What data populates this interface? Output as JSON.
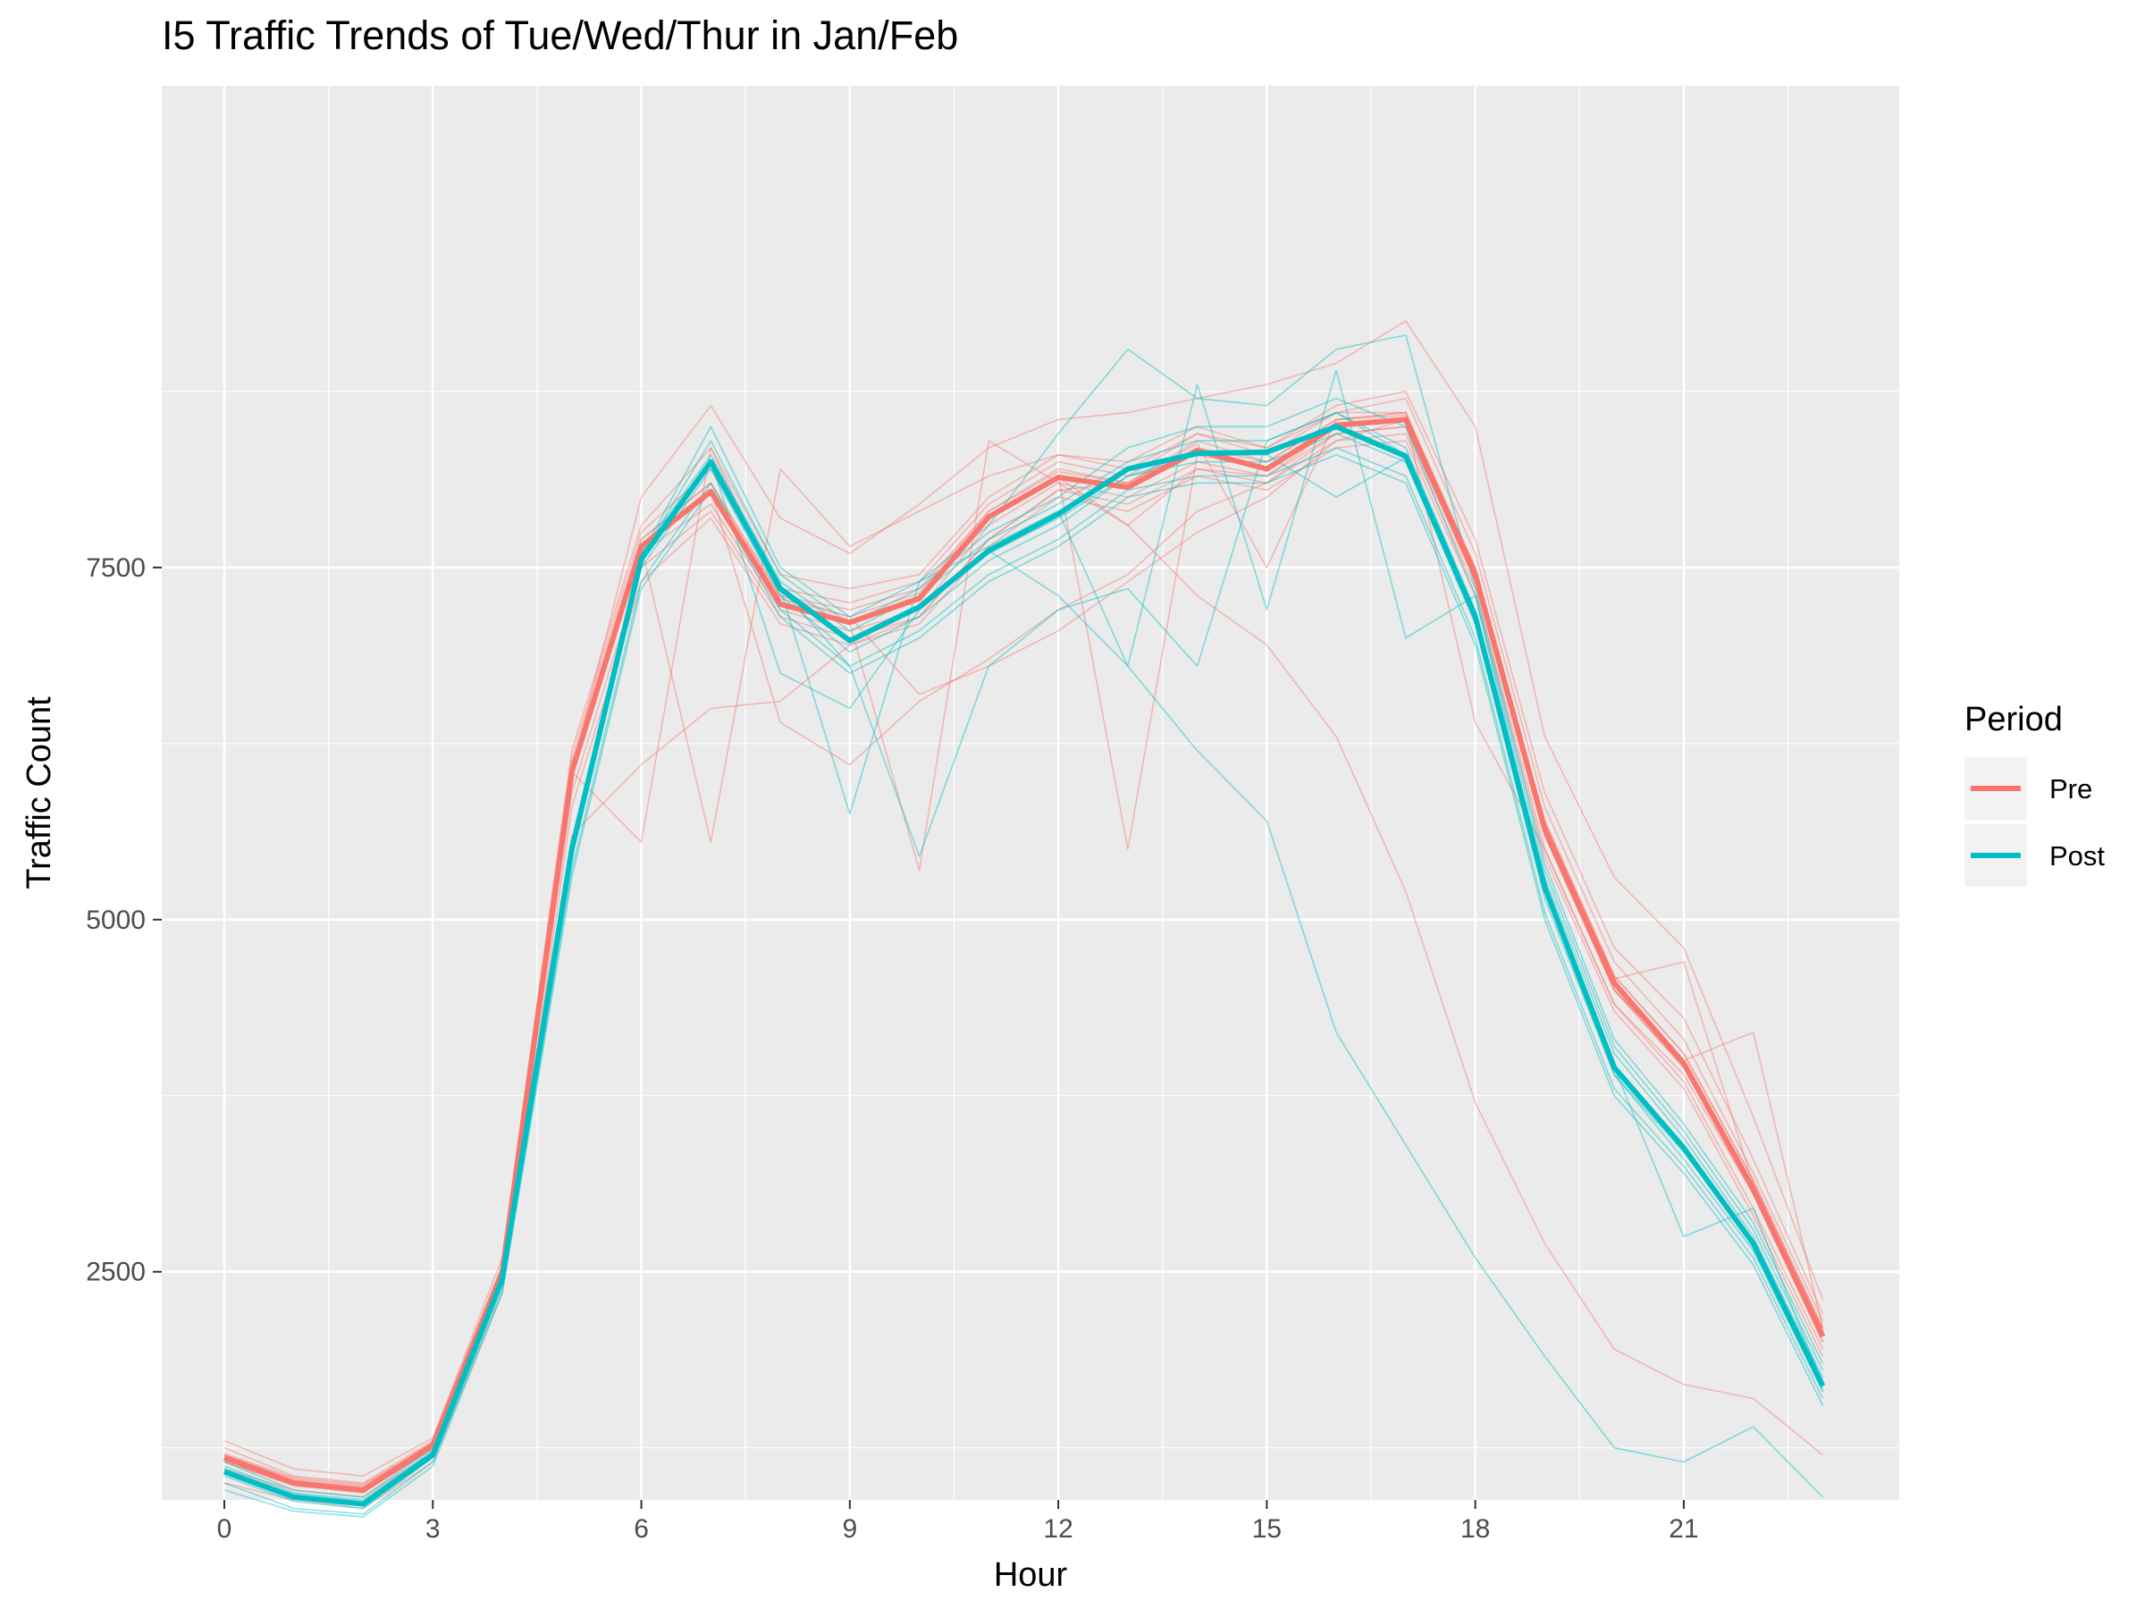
{
  "chart_data": {
    "type": "line",
    "title": "I5 Traffic Trends of Tue/Wed/Thur in Jan/Feb",
    "xlabel": "Hour",
    "ylabel": "Traffic Count",
    "xlim": [
      -0.9,
      24.1
    ],
    "ylim": [
      880,
      10920
    ],
    "x_ticks": [
      0,
      3,
      6,
      9,
      12,
      15,
      18,
      21
    ],
    "y_ticks": [
      2500,
      5000,
      7500
    ],
    "grid": true,
    "legend": {
      "title": "Period",
      "position": "right"
    },
    "colors": {
      "Pre": "#F8766D",
      "Post": "#00BFC4",
      "panel": "#EBEBEB",
      "grid": "#FFFFFF"
    },
    "x": [
      0,
      1,
      2,
      3,
      4,
      5,
      6,
      7,
      8,
      9,
      10,
      11,
      12,
      13,
      14,
      15,
      16,
      17,
      18,
      19,
      20,
      21,
      22,
      23
    ],
    "series": [
      {
        "name": "Pre",
        "values": [
          1180,
          1000,
          950,
          1270,
          2500,
          6050,
          7650,
          8040,
          7240,
          7110,
          7280,
          7860,
          8140,
          8070,
          8330,
          8200,
          8510,
          8550,
          7450,
          5640,
          4550,
          3980,
          3090,
          2040
        ]
      },
      {
        "name": "Post",
        "values": [
          1080,
          900,
          850,
          1200,
          2450,
          5500,
          7560,
          8250,
          7350,
          6980,
          7220,
          7620,
          7880,
          8200,
          8310,
          8320,
          8500,
          8290,
          7150,
          5230,
          3950,
          3380,
          2700,
          1690
        ]
      }
    ],
    "individual_days": [
      {
        "period": "Pre",
        "values": [
          1250,
          1050,
          1000,
          1300,
          2550,
          6100,
          7700,
          8100,
          7300,
          7200,
          7350,
          7900,
          8200,
          8100,
          8400,
          8250,
          8550,
          8600,
          7500,
          5700,
          4600,
          4050,
          3150,
          2100
        ]
      },
      {
        "period": "Pre",
        "values": [
          1300,
          1100,
          1050,
          1320,
          2600,
          6200,
          7800,
          8350,
          7450,
          7350,
          7450,
          8000,
          8300,
          8250,
          8500,
          8350,
          8650,
          8750,
          7700,
          5900,
          4800,
          4300,
          3300,
          2200
        ]
      },
      {
        "period": "Pre",
        "values": [
          1150,
          980,
          930,
          1250,
          2480,
          6000,
          7600,
          7950,
          7200,
          7050,
          7200,
          7800,
          8100,
          8000,
          8250,
          8150,
          8450,
          8500,
          7400,
          5600,
          4500,
          3950,
          3050,
          2000
        ]
      },
      {
        "period": "Pre",
        "values": [
          1100,
          950,
          900,
          1220,
          2450,
          5900,
          7500,
          7900,
          7150,
          7000,
          7150,
          7700,
          8050,
          7950,
          8200,
          8100,
          8400,
          8450,
          7350,
          5500,
          4400,
          3850,
          2950,
          1950
        ]
      },
      {
        "period": "Pre",
        "values": [
          1200,
          1020,
          970,
          1280,
          2520,
          6150,
          7750,
          8200,
          7350,
          7250,
          7400,
          7950,
          8250,
          8150,
          8450,
          8300,
          8600,
          8700,
          7600,
          5800,
          4700,
          4150,
          3200,
          2150
        ]
      },
      {
        "period": "Pre",
        "values": [
          1000,
          880,
          820,
          1150,
          2350,
          5800,
          7400,
          7850,
          7100,
          6950,
          7100,
          7650,
          8000,
          7900,
          8150,
          8050,
          8350,
          8400,
          7300,
          5450,
          4350,
          3800,
          2900,
          1900
        ]
      },
      {
        "period": "Pre",
        "values": [
          1180,
          1000,
          960,
          1260,
          2500,
          6050,
          8000,
          8650,
          7850,
          7600,
          7950,
          8350,
          8550,
          8600,
          8700,
          8800,
          8950,
          9250,
          8500,
          6300,
          5300,
          4800,
          3600,
          2300
        ]
      },
      {
        "period": "Pre",
        "values": [
          1150,
          990,
          940,
          1240,
          2480,
          5600,
          6100,
          6500,
          6550,
          6950,
          7150,
          7700,
          8050,
          8100,
          8350,
          8250,
          8550,
          8600,
          7450,
          5650,
          4500,
          4000,
          3100,
          2050
        ]
      },
      {
        "period": "Pre",
        "values": [
          1200,
          1030,
          980,
          1290,
          2520,
          6050,
          5550,
          8350,
          7300,
          7150,
          6600,
          6800,
          7050,
          7400,
          7750,
          8000,
          8400,
          8550,
          7500,
          5700,
          4600,
          4050,
          3150,
          2100
        ]
      },
      {
        "period": "Pre",
        "values": [
          1160,
          1000,
          950,
          1260,
          2500,
          6000,
          7650,
          5550,
          8200,
          7650,
          7900,
          8150,
          8300,
          8200,
          8450,
          8350,
          8600,
          8600,
          7400,
          5600,
          4500,
          4000,
          3100,
          2050
        ]
      },
      {
        "period": "Pre",
        "values": [
          1180,
          1010,
          960,
          1270,
          2500,
          6050,
          7650,
          8050,
          6400,
          6100,
          6550,
          6850,
          7200,
          7450,
          7900,
          8100,
          8450,
          8500,
          7400,
          5600,
          4500,
          3950,
          3100,
          2050
        ]
      },
      {
        "period": "Pre",
        "values": [
          1170,
          1000,
          950,
          1260,
          2490,
          6030,
          7640,
          8020,
          7250,
          7100,
          5350,
          8400,
          8100,
          7800,
          8200,
          8150,
          8500,
          8550,
          6400,
          5500,
          4400,
          3900,
          3050,
          2000
        ]
      },
      {
        "period": "Pre",
        "values": [
          1190,
          1010,
          960,
          1270,
          2510,
          6060,
          7660,
          8040,
          7240,
          7120,
          7300,
          7850,
          8150,
          5500,
          8300,
          8200,
          8500,
          8550,
          7450,
          5650,
          4550,
          4000,
          4200,
          2100
        ]
      },
      {
        "period": "Pre",
        "values": [
          1180,
          1000,
          950,
          1270,
          2500,
          6050,
          7650,
          8040,
          7240,
          7110,
          7280,
          7860,
          8140,
          7800,
          7300,
          6950,
          6300,
          5200,
          3700,
          2700,
          1950,
          1700,
          1600,
          1200
        ]
      },
      {
        "period": "Pre",
        "values": [
          1210,
          1040,
          990,
          1280,
          2530,
          6100,
          7700,
          8100,
          7280,
          7150,
          7320,
          7900,
          8180,
          8100,
          8380,
          7500,
          8550,
          8580,
          7480,
          5680,
          4580,
          4700,
          3120,
          2080
        ]
      },
      {
        "period": "Post",
        "values": [
          1150,
          950,
          900,
          1250,
          2500,
          5550,
          7600,
          8300,
          7400,
          7050,
          7300,
          7700,
          7950,
          8250,
          8400,
          8400,
          8600,
          8350,
          7200,
          5300,
          4050,
          3450,
          2750,
          1750
        ]
      },
      {
        "period": "Post",
        "values": [
          1050,
          870,
          820,
          1180,
          2420,
          5450,
          7500,
          8200,
          7300,
          6900,
          7150,
          7550,
          7800,
          8150,
          8250,
          8250,
          8450,
          8250,
          7100,
          5150,
          3900,
          3300,
          2650,
          1650
        ]
      },
      {
        "period": "Post",
        "values": [
          1100,
          920,
          870,
          1220,
          2470,
          5500,
          7580,
          8400,
          7450,
          7100,
          7350,
          7750,
          8000,
          8350,
          8500,
          8500,
          8700,
          8500,
          7300,
          5350,
          4100,
          3500,
          2800,
          1800
        ]
      },
      {
        "period": "Post",
        "values": [
          1000,
          820,
          780,
          1150,
          2380,
          5350,
          7400,
          8100,
          7200,
          6800,
          7050,
          7450,
          7700,
          8050,
          8150,
          8150,
          8350,
          8150,
          7000,
          5050,
          3800,
          3250,
          2600,
          1600
        ]
      },
      {
        "period": "Post",
        "values": [
          950,
          800,
          760,
          1120,
          2350,
          5300,
          7350,
          8050,
          7150,
          6750,
          7000,
          7400,
          7650,
          8000,
          8100,
          8100,
          8300,
          8100,
          6950,
          5000,
          3750,
          3200,
          2550,
          1550
        ]
      },
      {
        "period": "Post",
        "values": [
          1120,
          930,
          880,
          1230,
          2480,
          5520,
          7590,
          8500,
          7500,
          7150,
          7400,
          7800,
          8450,
          9050,
          8700,
          8650,
          9050,
          9150,
          7350,
          5400,
          4150,
          3550,
          2850,
          1850
        ]
      },
      {
        "period": "Post",
        "values": [
          1080,
          900,
          850,
          1200,
          2450,
          5500,
          7560,
          8250,
          7350,
          5750,
          7400,
          7650,
          7900,
          6800,
          8800,
          7200,
          8900,
          7000,
          7300,
          5250,
          3950,
          2750,
          2950,
          1700
        ]
      },
      {
        "period": "Post",
        "values": [
          1080,
          900,
          850,
          1200,
          2450,
          5500,
          7560,
          8250,
          7350,
          6800,
          5450,
          6800,
          7200,
          7350,
          6800,
          8400,
          8600,
          8300,
          7150,
          5230,
          3950,
          3380,
          2700,
          1690
        ]
      },
      {
        "period": "Post",
        "values": [
          1080,
          900,
          850,
          1200,
          2450,
          5500,
          7560,
          8250,
          7350,
          6980,
          7220,
          7620,
          7300,
          6800,
          6200,
          5700,
          4200,
          3400,
          2600,
          1900,
          1250,
          1150,
          1400,
          900
        ]
      },
      {
        "period": "Post",
        "values": [
          1090,
          910,
          860,
          1210,
          2460,
          5510,
          7570,
          8260,
          6750,
          6500,
          7200,
          7600,
          7850,
          8150,
          8300,
          8300,
          8000,
          8280,
          7150,
          5200,
          3900,
          3350,
          2700,
          1650
        ]
      },
      {
        "period": "Post",
        "values": [
          1070,
          890,
          840,
          1190,
          2440,
          5490,
          7550,
          8240,
          7340,
          6970,
          7210,
          7610,
          7870,
          8190,
          8300,
          8310,
          8490,
          8280,
          7140,
          5220,
          3940,
          3370,
          2690,
          1680
        ]
      }
    ]
  }
}
